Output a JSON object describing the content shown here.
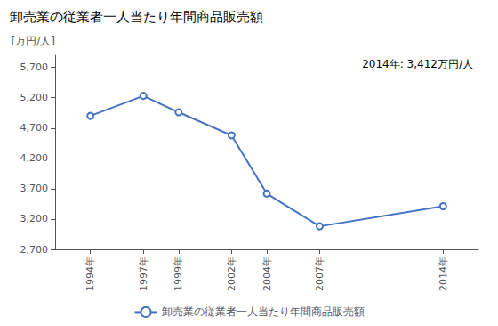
{
  "chart_data": {
    "type": "line",
    "title": "卸売業の従業者一人当たり年間商品販売額",
    "ylabel": "[万円/人]",
    "annotation": "2014年: 3,412万円/人",
    "x": [
      1994,
      1997,
      1999,
      2002,
      2004,
      2007,
      2014
    ],
    "series": [
      {
        "name": "卸売業の従業者一人当たり年間商品販売額",
        "color": "#4472C4",
        "marker": "circle",
        "values": [
          4900,
          5230,
          4960,
          4580,
          3620,
          3080,
          3412
        ]
      }
    ],
    "xlim": [
      1992,
      2016
    ],
    "xticks": [
      {
        "value": 1994,
        "label": "1994年"
      },
      {
        "value": 1997,
        "label": "1997年"
      },
      {
        "value": 1999,
        "label": "1999年"
      },
      {
        "value": 2002,
        "label": "2002年"
      },
      {
        "value": 2004,
        "label": "2004年"
      },
      {
        "value": 2007,
        "label": "2007年"
      },
      {
        "value": 2014,
        "label": "2014年"
      }
    ],
    "ylim": [
      2700,
      5900
    ],
    "yticks": [
      {
        "value": 2700,
        "label": "2,700"
      },
      {
        "value": 3200,
        "label": "3,200"
      },
      {
        "value": 3700,
        "label": "3,700"
      },
      {
        "value": 4200,
        "label": "4,200"
      },
      {
        "value": 4700,
        "label": "4,700"
      },
      {
        "value": 5200,
        "label": "5,200"
      },
      {
        "value": 5700,
        "label": "5,700"
      }
    ],
    "grid": false,
    "legend": "bottom"
  }
}
